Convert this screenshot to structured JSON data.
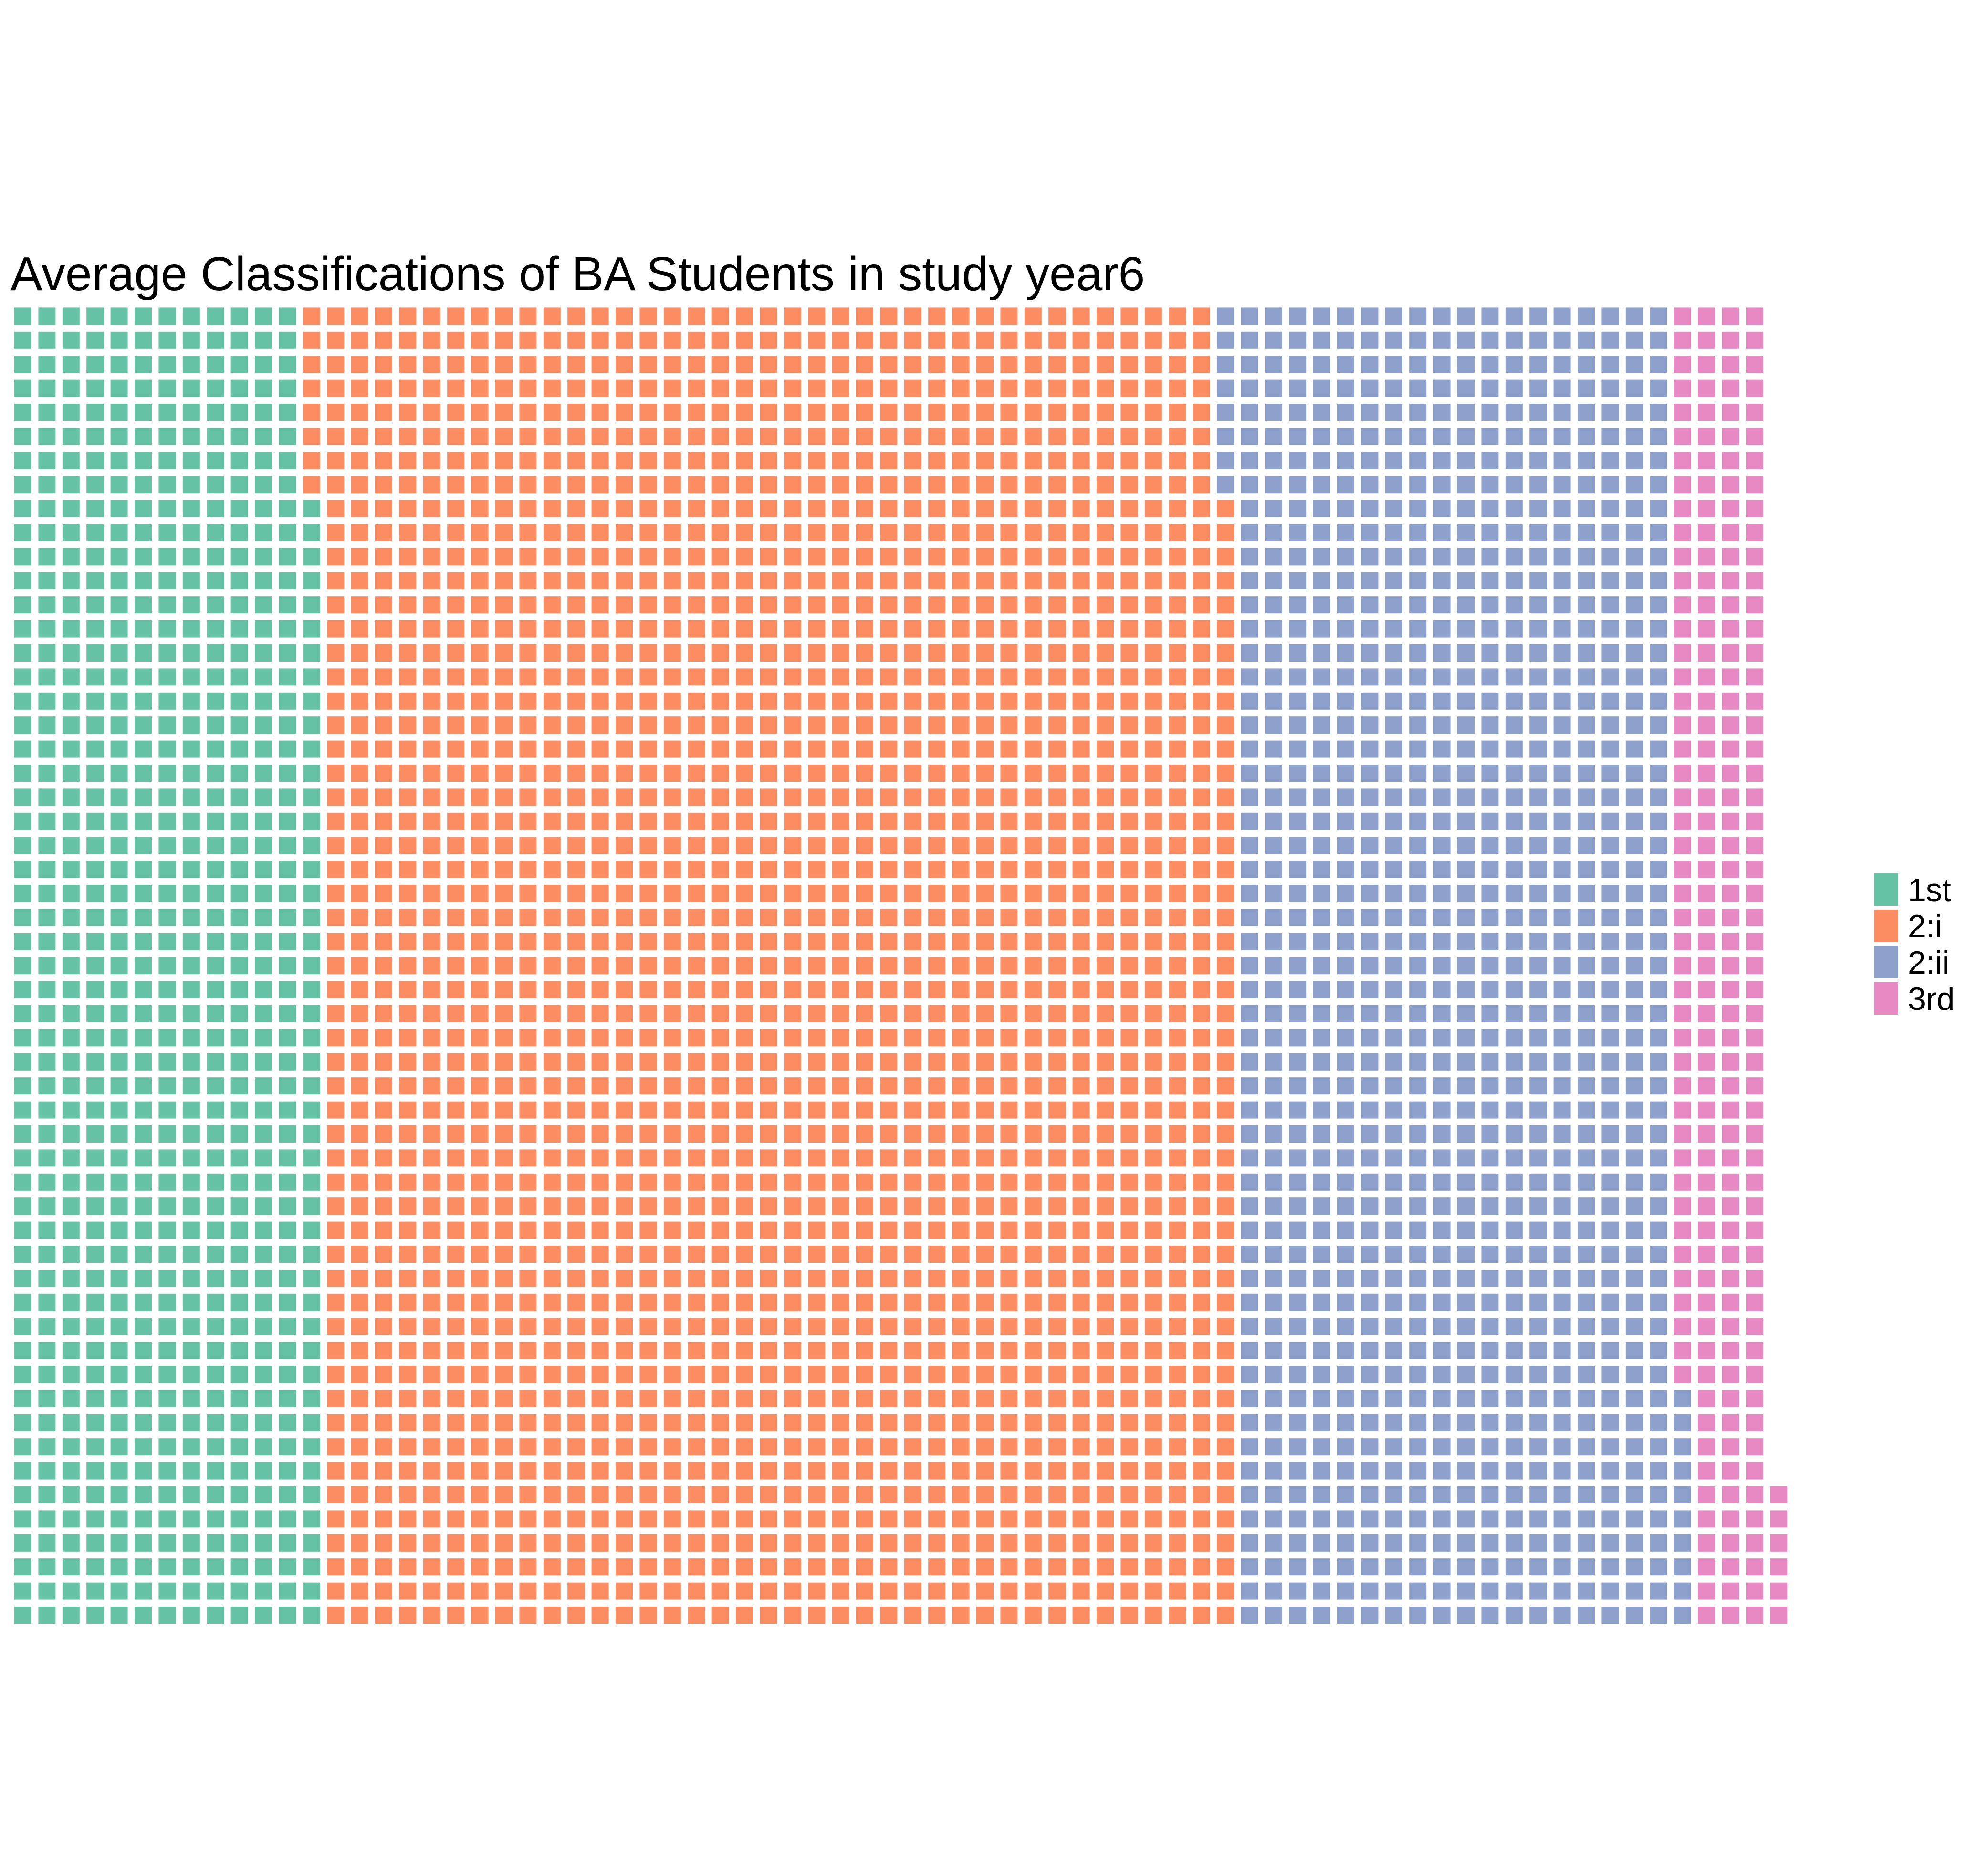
{
  "chart_data": {
    "type": "waffle",
    "title": "Average Classifications of BA Students in study year6",
    "rows": 55,
    "categories": [
      "1st",
      "2:i",
      "2:ii",
      "3rd"
    ],
    "values": [
      707,
      2090,
      1008,
      216
    ],
    "colors": [
      "#66c2a5",
      "#fc8d62",
      "#8da0cb",
      "#e78ac3"
    ],
    "legend_position": "right"
  }
}
